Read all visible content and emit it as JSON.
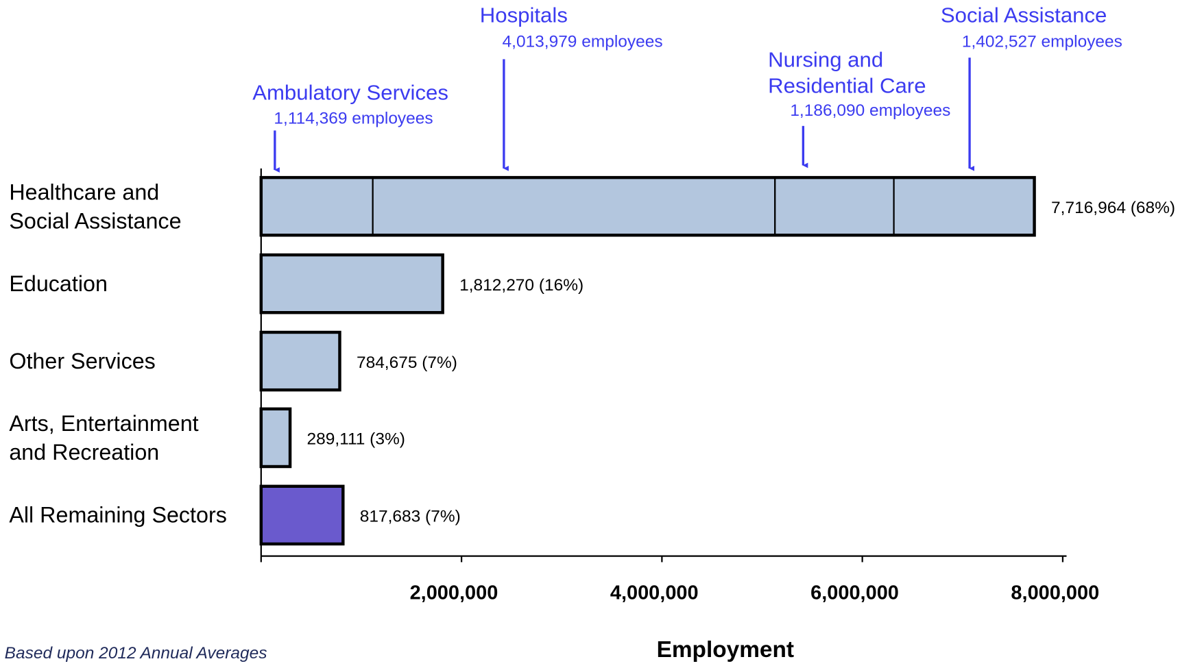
{
  "chart_data": {
    "type": "bar",
    "orientation": "horizontal",
    "categories": [
      "Healthcare and\nSocial Assistance",
      "Education",
      "Other Services",
      "Arts, Entertainment\nand Recreation",
      "All Remaining Sectors"
    ],
    "values": [
      7716964,
      1812270,
      784675,
      289111,
      817683
    ],
    "value_labels": [
      "7,716,964  (68%)",
      "1,812,270  (16%)",
      "784,675  (7%)",
      "289,111  (3%)",
      "817,683  (7%)"
    ],
    "colors": [
      "#b3c6de",
      "#b3c6de",
      "#b3c6de",
      "#b3c6de",
      "#6a5acd"
    ],
    "segments": [
      {
        "name": "Ambulatory Services",
        "value": 1114369,
        "value_label": "1,114,369 employees"
      },
      {
        "name": "Hospitals",
        "value": 4013979,
        "value_label": "4,013,979 employees"
      },
      {
        "name": "Nursing and\nResidential Care",
        "value": 1186090,
        "value_label": "1,186,090 employees"
      },
      {
        "name": "Social Assistance",
        "value": 1402527,
        "value_label": "1,402,527 employees"
      }
    ],
    "annotation_color": "#3b3bf0",
    "xlim": [
      0,
      8000000
    ],
    "xticks": [
      {
        "value": 2000000,
        "label": "2,000,000"
      },
      {
        "value": 4000000,
        "label": "4,000,000"
      },
      {
        "value": 6000000,
        "label": "6,000,000"
      },
      {
        "value": 8000000,
        "label": "8,000,000"
      }
    ],
    "xlabel": "Employment",
    "note": "Based upon 2012 Annual Averages"
  }
}
